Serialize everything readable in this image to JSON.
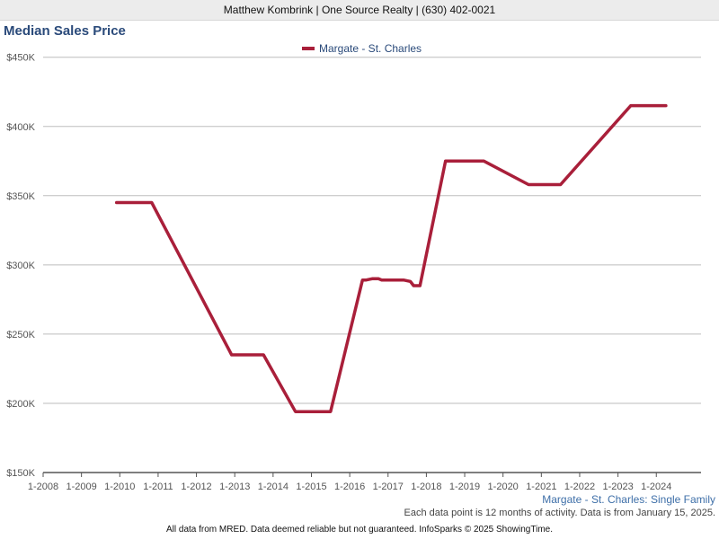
{
  "header": {
    "text": "Matthew Kombrink | One Source Realty | (630) 402-0021"
  },
  "footer": {
    "series_note": "Margate - St. Charles: Single Family",
    "data_note": "Each data point is 12 months of activity. Data is from January 15, 2025.",
    "credit": "All data from MRED. Data deemed reliable but not guaranteed. InfoSparks © 2025 ShowingTime."
  },
  "chart_data": {
    "type": "line",
    "title": "Median Sales Price",
    "xlabel": "",
    "ylabel": "",
    "x_ticks": [
      "1-2008",
      "1-2009",
      "1-2010",
      "1-2011",
      "1-2012",
      "1-2013",
      "1-2014",
      "1-2015",
      "1-2016",
      "1-2017",
      "1-2018",
      "1-2019",
      "1-2020",
      "1-2021",
      "1-2022",
      "1-2023",
      "1-2024"
    ],
    "xlim": [
      "2008-01",
      "2025-03"
    ],
    "y_ticks": [
      "$150K",
      "$200K",
      "$250K",
      "$300K",
      "$350K",
      "$400K",
      "$450K"
    ],
    "y_tick_values": [
      150000,
      200000,
      250000,
      300000,
      350000,
      400000,
      450000
    ],
    "ylim": [
      150000,
      455000
    ],
    "grid": true,
    "legend_position": "top-center",
    "series": [
      {
        "name": "Margate - St. Charles",
        "color": "#a91f3a",
        "points": [
          [
            "2009-12",
            345000
          ],
          [
            "2010-11",
            345000
          ],
          [
            "2012-12",
            235000
          ],
          [
            "2013-10",
            235000
          ],
          [
            "2014-08",
            194000
          ],
          [
            "2015-07",
            194000
          ],
          [
            "2016-05",
            289000
          ],
          [
            "2016-06",
            289000
          ],
          [
            "2016-08",
            290000
          ],
          [
            "2016-10",
            290000
          ],
          [
            "2016-11",
            289000
          ],
          [
            "2017-06",
            289000
          ],
          [
            "2017-08",
            288000
          ],
          [
            "2017-09",
            285000
          ],
          [
            "2017-11",
            285000
          ],
          [
            "2018-07",
            375000
          ],
          [
            "2019-07",
            375000
          ],
          [
            "2020-09",
            358000
          ],
          [
            "2021-07",
            358000
          ],
          [
            "2023-05",
            415000
          ],
          [
            "2024-04",
            415000
          ]
        ]
      }
    ]
  }
}
